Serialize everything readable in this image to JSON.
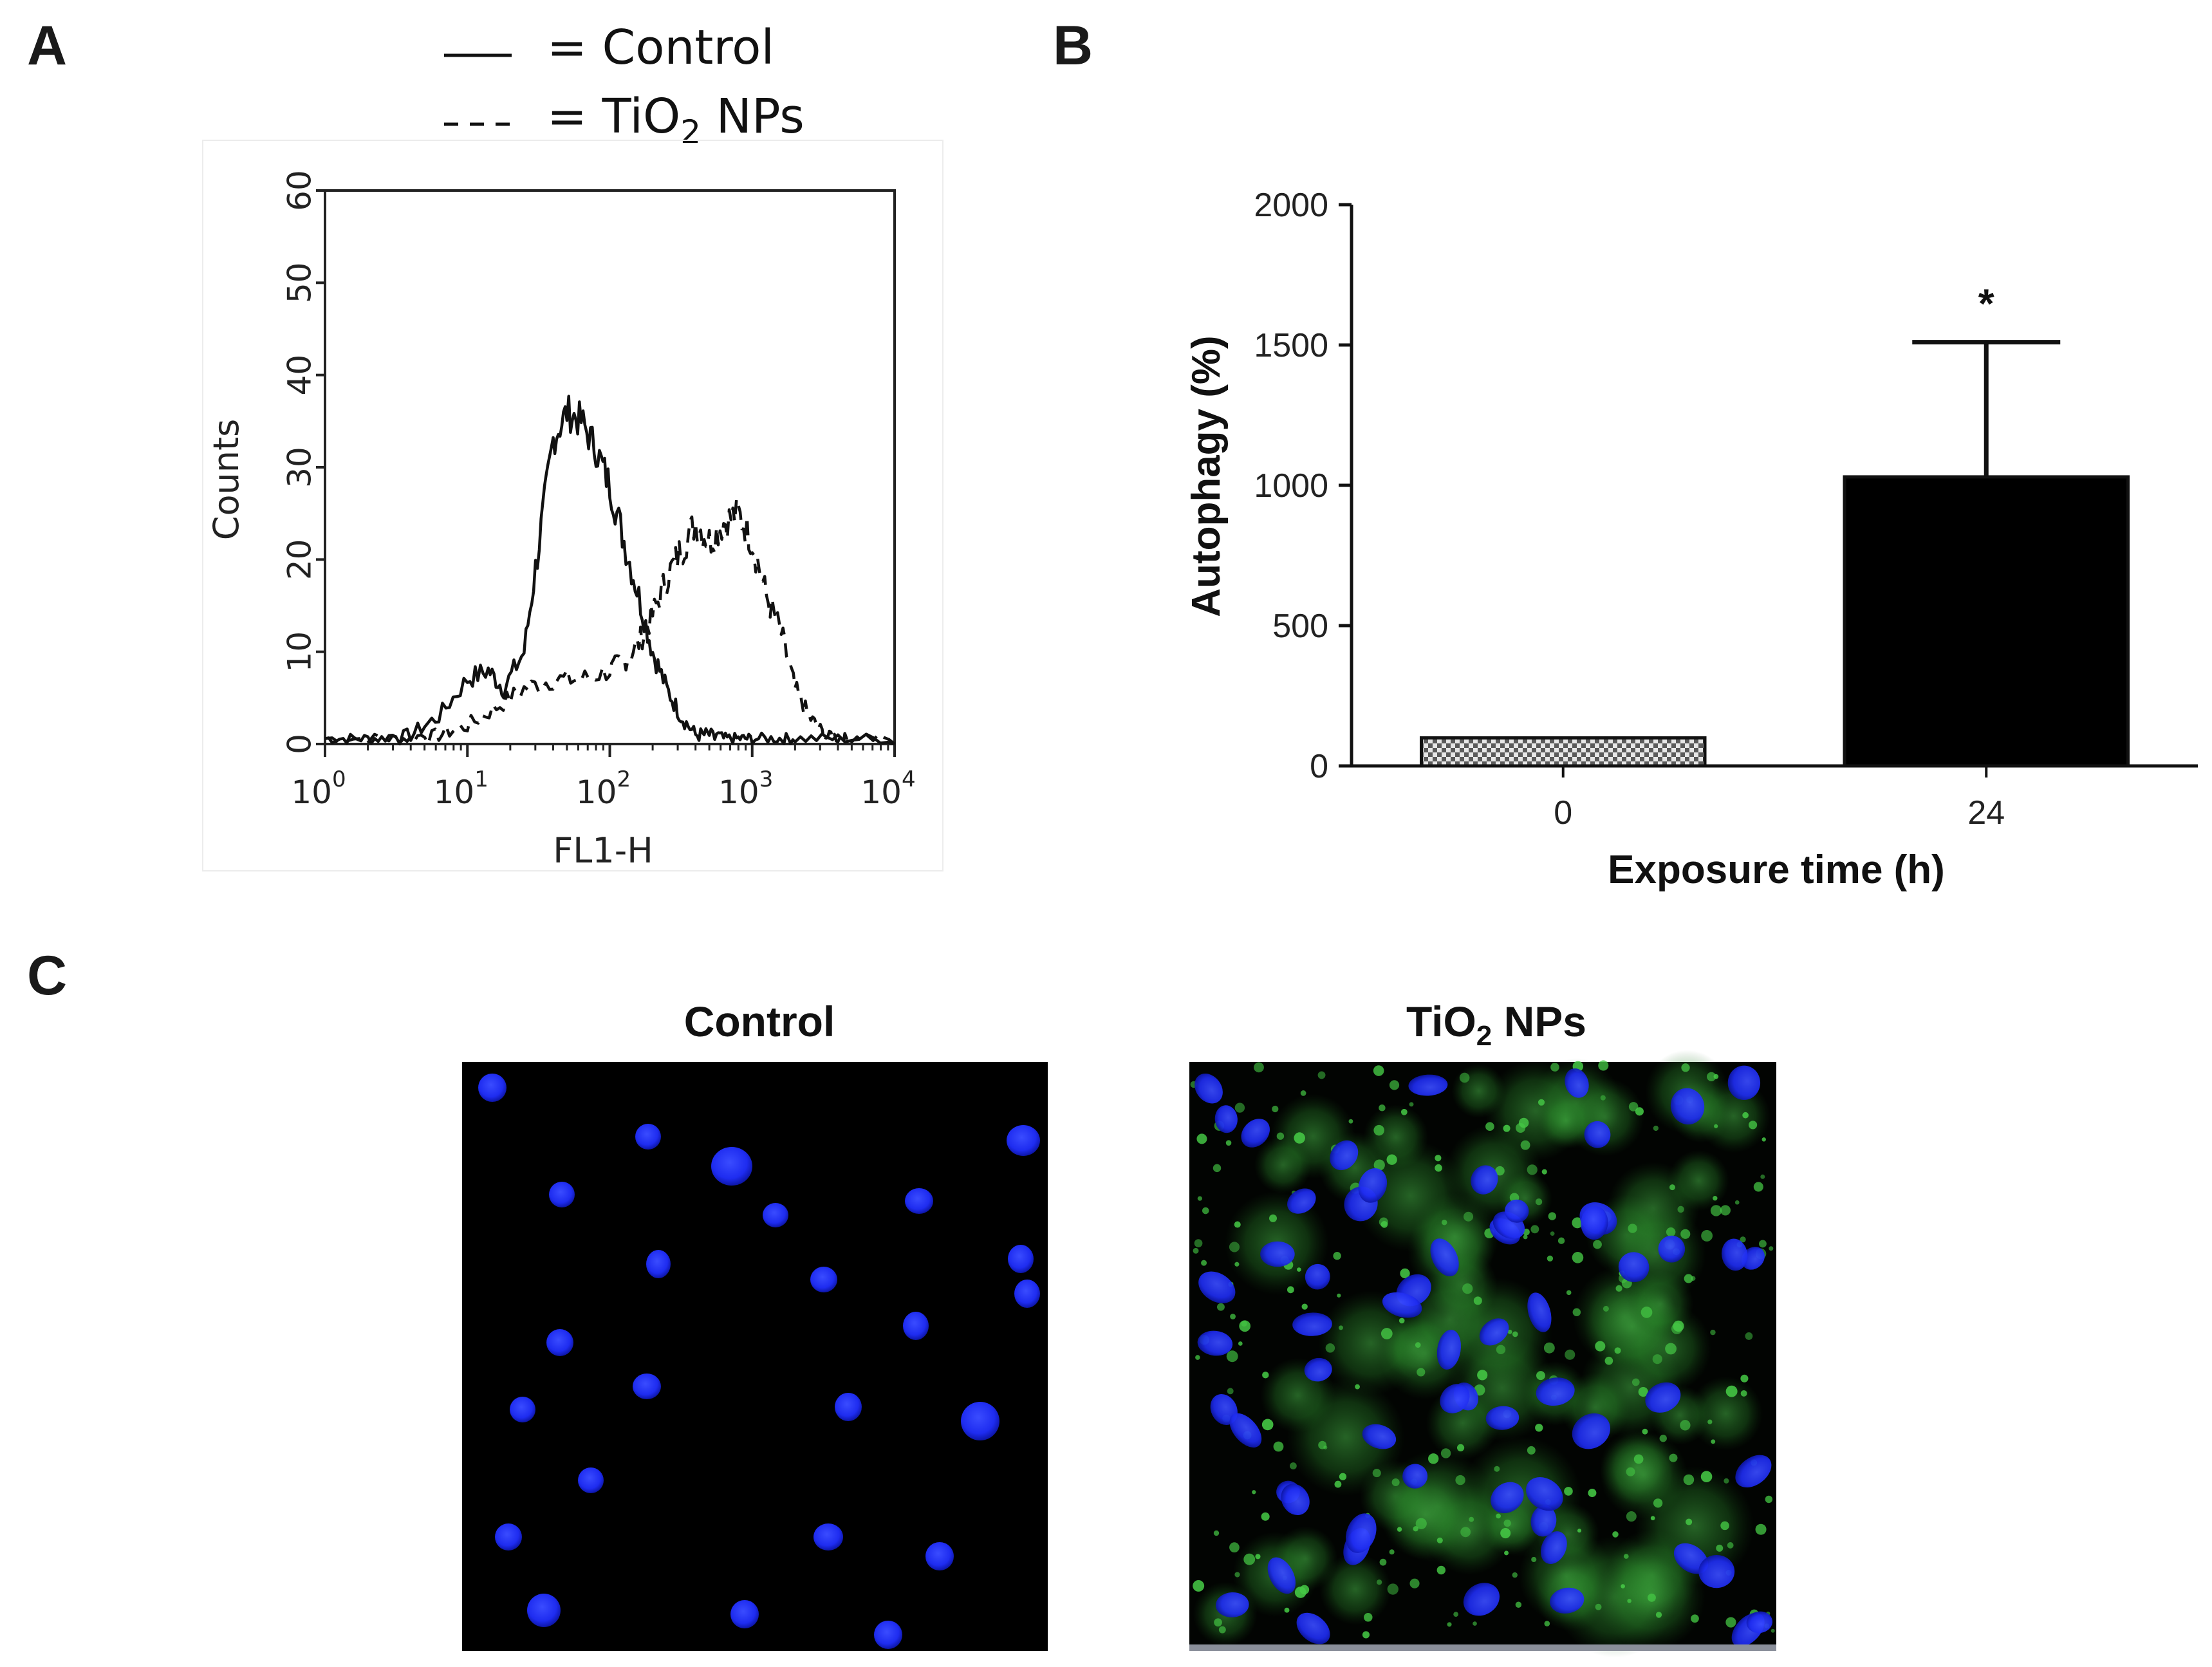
{
  "panels": {
    "a": "A",
    "b": "B",
    "c": "C"
  },
  "legend": {
    "control_text": "= Control",
    "tio2_prefix": "= TiO",
    "tio2_sub": "2",
    "tio2_suffix": " NPs"
  },
  "chart_data": [
    {
      "type": "line",
      "panel": "A",
      "xlabel": "FL1-H",
      "ylabel": "Counts",
      "xscale": "log",
      "xlim": [
        1,
        10000
      ],
      "ylim": [
        0,
        60
      ],
      "x_tick_base": "10",
      "x_tick_exponents": [
        "0",
        "1",
        "2",
        "3",
        "4"
      ],
      "y_ticks": [
        "0",
        "10",
        "20",
        "30",
        "40",
        "50",
        "60"
      ],
      "series": [
        {
          "name": "Control",
          "style": "solid",
          "x": [
            1,
            1.6,
            2.5,
            4,
            6.3,
            10,
            14,
            18,
            25,
            32,
            40,
            50,
            63,
            80,
            100,
            126,
            160,
            200,
            251,
            316,
            400,
            500,
            630,
            800,
            1000,
            1500,
            2000,
            4000,
            10000
          ],
          "y": [
            0,
            0,
            0,
            1,
            3,
            7,
            8,
            6,
            10,
            22,
            33,
            36,
            35,
            32,
            28,
            22,
            16,
            10,
            6,
            3,
            1,
            1,
            0,
            0,
            0,
            0,
            0,
            0,
            0
          ]
        },
        {
          "name": "TiO2 NPs",
          "style": "dashed",
          "x": [
            1,
            2.5,
            4,
            6.3,
            10,
            16,
            25,
            40,
            63,
            100,
            126,
            160,
            200,
            251,
            316,
            400,
            500,
            630,
            800,
            1000,
            1260,
            1600,
            2000,
            2500,
            3200,
            4000,
            5000,
            10000
          ],
          "y": [
            0,
            0,
            0,
            1,
            2,
            4,
            6,
            7,
            7,
            8,
            9,
            11,
            14,
            18,
            21,
            24,
            22,
            24,
            25,
            22,
            16,
            12,
            6,
            3,
            1,
            0,
            0,
            0
          ]
        }
      ]
    },
    {
      "type": "bar",
      "panel": "B",
      "categories": [
        "0",
        "24"
      ],
      "values": [
        100,
        1030
      ],
      "errors": [
        0,
        480
      ],
      "significance": [
        "",
        "*"
      ],
      "bar_colors": [
        "#bdbdbd",
        "#000000"
      ],
      "bar_patterns": [
        "checker",
        "solid"
      ],
      "xlabel": "Exposure time (h)",
      "ylabel": "Autophagy (%)",
      "ylim": [
        0,
        2000
      ],
      "y_ticks": [
        0,
        500,
        1000,
        1500,
        2000
      ]
    }
  ],
  "micrographs": {
    "control": {
      "title": "Control"
    },
    "tio2": {
      "title_prefix": "TiO",
      "title_sub": "2",
      "title_suffix": " NPs"
    },
    "colors": {
      "background": "#000000",
      "nucleus": "#1e2cf0",
      "lc3_stain": "#3fbf3f"
    }
  }
}
